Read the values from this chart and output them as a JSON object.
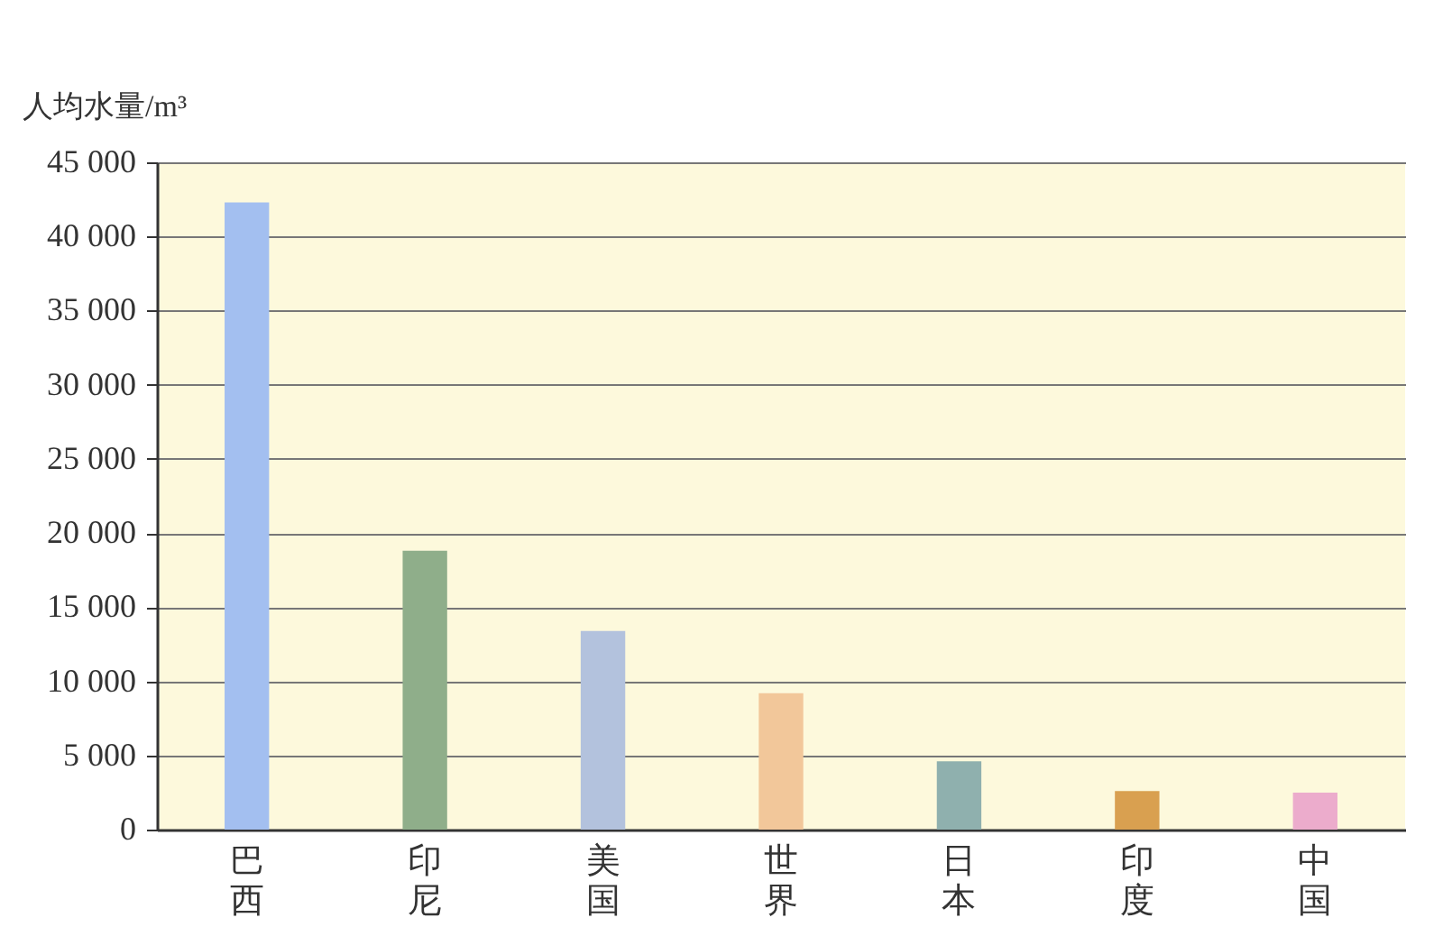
{
  "chart_data": {
    "type": "bar",
    "ylabel": "人均水量/m³",
    "categories": [
      "巴西",
      "印尼",
      "美国",
      "世界",
      "日本",
      "印度",
      "中国"
    ],
    "values": [
      42300,
      18800,
      13400,
      9200,
      4600,
      2600,
      2500
    ],
    "colors": [
      "#a3bff0",
      "#8fae8a",
      "#b3c2dd",
      "#f2c79a",
      "#8fb0ae",
      "#d9a050",
      "#ecaccc"
    ],
    "ylim": [
      0,
      45000
    ],
    "yticks": [
      {
        "value": 0,
        "label": "0"
      },
      {
        "value": 5000,
        "label": "5 000"
      },
      {
        "value": 10000,
        "label": "10 000"
      },
      {
        "value": 15000,
        "label": "15 000"
      },
      {
        "value": 20000,
        "label": "20 000"
      },
      {
        "value": 25000,
        "label": "25 000"
      },
      {
        "value": 30000,
        "label": "30 000"
      },
      {
        "value": 35000,
        "label": "35 000"
      },
      {
        "value": 40000,
        "label": "40 000"
      },
      {
        "value": 45000,
        "label": "45 000"
      }
    ],
    "grid": "y",
    "legend": false
  }
}
